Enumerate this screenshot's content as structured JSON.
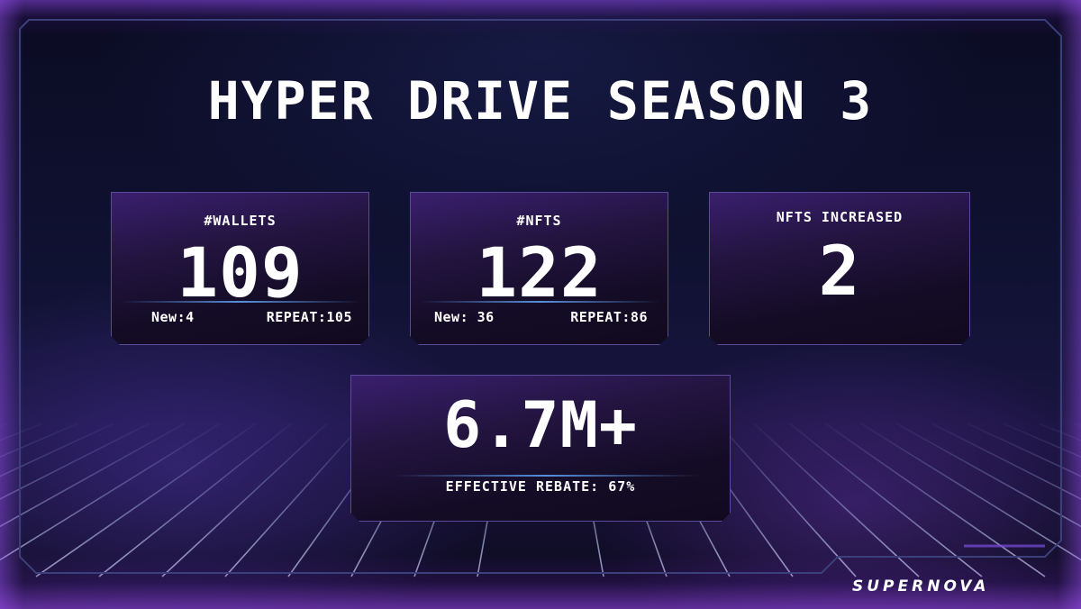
{
  "title": "HYPER DRIVE SEASON 3",
  "cards": {
    "wallets": {
      "label": "#WALLETS",
      "value": "109",
      "new_text": "New:4",
      "repeat_text": "REPEAT:105"
    },
    "nfts": {
      "label": "#NFTS",
      "value": "122",
      "new_text": "New: 36",
      "repeat_text": "REPEAT:86"
    },
    "nfts_increased": {
      "label": "NFTS INCREASED",
      "value": "2"
    },
    "volume": {
      "value": "6.7M+",
      "rebate_text": "EFFECTIVE REBATE: 67%"
    }
  },
  "brand": {
    "logo_text": "SUPERNOVA",
    "logo_icon": "supernova-logo-icon"
  },
  "colors": {
    "accent_purple": "#8c46e6",
    "divider_blue": "#5a96e6",
    "card_border": "#5a4a9a",
    "text": "#ffffff"
  }
}
